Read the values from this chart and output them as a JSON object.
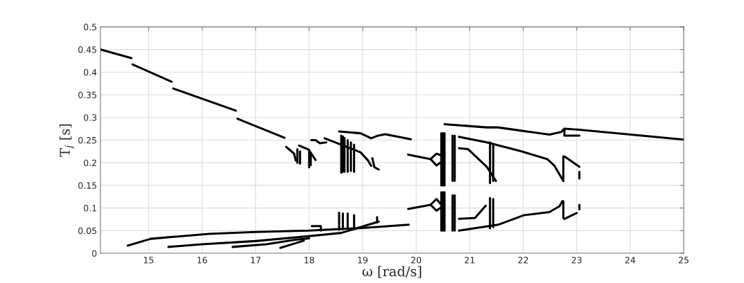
{
  "chart_data": {
    "type": "line",
    "xlabel": "ω [rad/s]",
    "ylabel": "T$_{j}$ [s]",
    "xlim": [
      14.1,
      25
    ],
    "xticks": [
      15,
      16,
      17,
      18,
      19,
      20,
      21,
      22,
      23,
      24,
      25
    ],
    "ylim": [
      0,
      0.5
    ],
    "yticks": [
      0,
      0.05,
      0.1,
      0.15,
      0.2,
      0.25,
      0.3,
      0.35,
      0.4,
      0.45,
      0.5
    ],
    "grid": true,
    "line_style": "solid",
    "marker": "none",
    "series": [
      {
        "color": "#000000",
        "x": [
          14.1,
          14.68
        ],
        "values": [
          0.45,
          0.431
        ]
      },
      {
        "color": "#000000",
        "x": [
          14.7,
          15.43
        ],
        "values": [
          0.417,
          0.379
        ]
      },
      {
        "color": "#000000",
        "x": [
          15.46,
          16.63
        ],
        "values": [
          0.364,
          0.315
        ]
      },
      {
        "color": "#000000",
        "x": [
          16.66,
          17.54
        ],
        "values": [
          0.297,
          0.255
        ]
      },
      {
        "color": "#000000",
        "x": [
          17.57,
          17.72,
          17.75
        ],
        "values": [
          0.235,
          0.22,
          0.205
        ]
      },
      {
        "color": "#000000",
        "x": [
          17.81,
          17.99,
          18.12
        ],
        "values": [
          0.238,
          0.229,
          0.206
        ]
      },
      {
        "color": "#000000",
        "x": [
          18.04,
          18.12,
          18.2,
          18.32
        ],
        "values": [
          0.25,
          0.25,
          0.243,
          0.245
        ]
      },
      {
        "color": "#000000",
        "x": [
          18.29,
          18.96,
          19.1,
          19.16
        ],
        "values": [
          0.254,
          0.223,
          0.205,
          0.193
        ]
      },
      {
        "color": "#000000",
        "x": [
          18.56,
          18.96,
          19.16,
          19.29,
          19.42,
          19.9
        ],
        "values": [
          0.269,
          0.265,
          0.254,
          0.26,
          0.263,
          0.252
        ]
      },
      {
        "color": "#000000",
        "x": [
          17.78,
          17.78
        ],
        "values": [
          0.2,
          0.23
        ]
      },
      {
        "color": "#000000",
        "x": [
          17.83,
          17.83
        ],
        "values": [
          0.198,
          0.225
        ]
      },
      {
        "color": "#000000",
        "x": [
          18.0,
          18.0
        ],
        "values": [
          0.19,
          0.225
        ]
      },
      {
        "color": "#000000",
        "x": [
          18.03,
          18.03
        ],
        "values": [
          0.195,
          0.22
        ]
      },
      {
        "color": "#000000",
        "x": [
          18.6,
          18.6
        ],
        "values": [
          0.178,
          0.26
        ]
      },
      {
        "color": "#000000",
        "x": [
          18.63,
          18.63
        ],
        "values": [
          0.18,
          0.258
        ]
      },
      {
        "color": "#000000",
        "x": [
          18.66,
          18.66
        ],
        "values": [
          0.18,
          0.255
        ]
      },
      {
        "color": "#000000",
        "x": [
          18.72,
          18.72
        ],
        "values": [
          0.18,
          0.25
        ]
      },
      {
        "color": "#000000",
        "x": [
          18.78,
          18.78
        ],
        "values": [
          0.182,
          0.245
        ]
      },
      {
        "color": "#000000",
        "x": [
          18.84,
          18.84
        ],
        "values": [
          0.18,
          0.24
        ]
      },
      {
        "color": "#000000",
        "x": [
          19.18,
          19.22,
          19.3
        ],
        "values": [
          0.21,
          0.19,
          0.185
        ]
      },
      {
        "color": "#000000",
        "x": [
          20.53,
          21.32,
          21.53,
          22.49,
          22.71,
          22.77,
          23.05,
          25
        ],
        "values": [
          0.285,
          0.278,
          0.278,
          0.262,
          0.268,
          0.275,
          0.273,
          0.251
        ]
      },
      {
        "color": "#000000",
        "x": [
          22.77,
          22.77,
          23.05
        ],
        "values": [
          0.275,
          0.26,
          0.26
        ]
      },
      {
        "color": "#000000",
        "x": [
          19.85,
          20.27,
          20.38,
          20.45
        ],
        "values": [
          0.218,
          0.208,
          0.22,
          0.217
        ]
      },
      {
        "color": "#000000",
        "x": [
          20.27,
          20.38,
          20.45
        ],
        "values": [
          0.208,
          0.194,
          0.2
        ]
      },
      {
        "color": "#000000",
        "x": [
          20.8,
          21.32,
          21.97,
          22.45,
          22.58,
          22.75
        ],
        "values": [
          0.257,
          0.245,
          0.225,
          0.208,
          0.194,
          0.16
        ]
      },
      {
        "color": "#000000",
        "x": [
          20.8,
          20.97,
          21.32,
          21.49
        ],
        "values": [
          0.232,
          0.23,
          0.191,
          0.16
        ]
      },
      {
        "color": "#000000",
        "x": [
          22.77,
          23.05
        ],
        "values": [
          0.214,
          0.191
        ]
      },
      {
        "color": "#000000",
        "x": [
          23.05,
          23.05
        ],
        "values": [
          0.165,
          0.18
        ]
      },
      {
        "color": "#000000",
        "x": [
          23.05,
          23.05
        ],
        "values": [
          0.097,
          0.107
        ]
      },
      {
        "color": "#000000",
        "x": [
          20.47,
          20.47
        ],
        "values": [
          0.15,
          0.265
        ]
      },
      {
        "color": "#000000",
        "x": [
          20.5,
          20.5
        ],
        "values": [
          0.15,
          0.265
        ]
      },
      {
        "color": "#000000",
        "x": [
          20.53,
          20.53
        ],
        "values": [
          0.15,
          0.265
        ]
      },
      {
        "color": "#000000",
        "x": [
          20.68,
          20.68
        ],
        "values": [
          0.16,
          0.26
        ]
      },
      {
        "color": "#000000",
        "x": [
          20.72,
          20.72
        ],
        "values": [
          0.16,
          0.26
        ]
      },
      {
        "color": "#000000",
        "x": [
          21.38,
          21.38
        ],
        "values": [
          0.155,
          0.245
        ]
      },
      {
        "color": "#000000",
        "x": [
          21.44,
          21.44
        ],
        "values": [
          0.16,
          0.24
        ]
      },
      {
        "color": "#000000",
        "x": [
          22.75,
          22.75
        ],
        "values": [
          0.16,
          0.214
        ]
      },
      {
        "color": "#000000",
        "x": [
          20.47,
          20.47
        ],
        "values": [
          0.05,
          0.135
        ]
      },
      {
        "color": "#000000",
        "x": [
          20.5,
          20.5
        ],
        "values": [
          0.05,
          0.135
        ]
      },
      {
        "color": "#000000",
        "x": [
          20.53,
          20.53
        ],
        "values": [
          0.05,
          0.135
        ]
      },
      {
        "color": "#000000",
        "x": [
          20.68,
          20.68
        ],
        "values": [
          0.05,
          0.128
        ]
      },
      {
        "color": "#000000",
        "x": [
          20.72,
          20.72
        ],
        "values": [
          0.05,
          0.128
        ]
      },
      {
        "color": "#000000",
        "x": [
          21.38,
          21.38
        ],
        "values": [
          0.055,
          0.122
        ]
      },
      {
        "color": "#000000",
        "x": [
          21.44,
          21.44
        ],
        "values": [
          0.058,
          0.12
        ]
      },
      {
        "color": "#000000",
        "x": [
          22.75,
          22.75
        ],
        "values": [
          0.078,
          0.115
        ]
      },
      {
        "color": "#000000",
        "x": [
          19.85,
          20.27,
          20.38,
          20.45
        ],
        "values": [
          0.098,
          0.107,
          0.094,
          0.1
        ]
      },
      {
        "color": "#000000",
        "x": [
          20.27,
          20.38,
          20.45
        ],
        "values": [
          0.107,
          0.12,
          0.11
        ]
      },
      {
        "color": "#000000",
        "x": [
          20.8,
          21.1,
          21.3
        ],
        "values": [
          0.076,
          0.078,
          0.105
        ]
      },
      {
        "color": "#000000",
        "x": [
          20.8,
          21.53,
          22.01,
          22.49,
          22.68,
          22.73
        ],
        "values": [
          0.05,
          0.063,
          0.084,
          0.091,
          0.104,
          0.115
        ]
      },
      {
        "color": "#000000",
        "x": [
          22.77,
          23.0
        ],
        "values": [
          0.076,
          0.089
        ]
      },
      {
        "color": "#000000",
        "x": [
          14.61,
          15.04,
          16.13,
          17.0,
          18.0,
          19.0,
          19.86
        ],
        "values": [
          0.017,
          0.032,
          0.043,
          0.047,
          0.05,
          0.056,
          0.063
        ]
      },
      {
        "color": "#000000",
        "x": [
          15.37,
          16.0,
          17.0,
          18.0,
          18.6,
          19.3
        ],
        "values": [
          0.014,
          0.02,
          0.027,
          0.038,
          0.045,
          0.07
        ]
      },
      {
        "color": "#000000",
        "x": [
          16.57,
          17.2,
          17.74,
          18.0
        ],
        "values": [
          0.014,
          0.02,
          0.03,
          0.033
        ]
      },
      {
        "color": "#000000",
        "x": [
          17.46,
          17.74,
          17.9
        ],
        "values": [
          0.012,
          0.022,
          0.028
        ]
      },
      {
        "color": "#000000",
        "x": [
          18.05,
          18.22,
          18.22
        ],
        "values": [
          0.06,
          0.06,
          0.05
        ]
      },
      {
        "color": "#000000",
        "x": [
          18.56,
          18.56
        ],
        "values": [
          0.052,
          0.09
        ]
      },
      {
        "color": "#000000",
        "x": [
          18.63,
          18.63
        ],
        "values": [
          0.053,
          0.088
        ]
      },
      {
        "color": "#000000",
        "x": [
          18.72,
          18.72
        ],
        "values": [
          0.054,
          0.088
        ]
      },
      {
        "color": "#000000",
        "x": [
          18.84,
          18.84
        ],
        "values": [
          0.055,
          0.084
        ]
      },
      {
        "color": "#000000",
        "x": [
          19.27,
          19.27
        ],
        "values": [
          0.068,
          0.08
        ]
      }
    ]
  }
}
